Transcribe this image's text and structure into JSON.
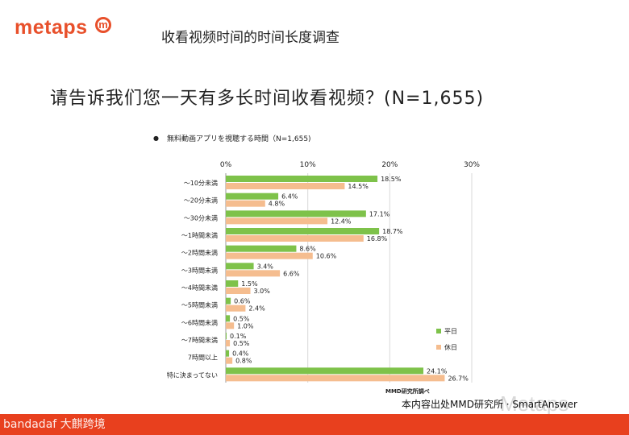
{
  "header": {
    "logo_text": "metaps",
    "logo_mark": "m",
    "slide_title": "收看视频时间的时间长度调查"
  },
  "question": "请告诉我们您一天有多长时间收看视频？(N=1,655)",
  "chart_data": {
    "type": "bar",
    "orientation": "horizontal",
    "title": "無料動画アプリを視聴する時間（N=1,655)",
    "title_bullet": "●",
    "categories": [
      "～10分未満",
      "～20分未満",
      "～30分未満",
      "～1時間未満",
      "～2時間未満",
      "～3時間未満",
      "～4時間未満",
      "～5時間未満",
      "～6時間未満",
      "～7時間未満",
      "7時間以上",
      "特に決まってない"
    ],
    "series": [
      {
        "name": "平日",
        "color": "#7ec24a",
        "values": [
          18.5,
          6.4,
          17.1,
          18.7,
          8.6,
          3.4,
          1.5,
          0.6,
          0.5,
          0.1,
          0.4,
          24.1
        ]
      },
      {
        "name": "休日",
        "color": "#f5bd8f",
        "values": [
          14.5,
          4.8,
          12.4,
          16.8,
          10.6,
          6.6,
          3.0,
          2.4,
          1.0,
          0.5,
          0.8,
          26.7
        ]
      }
    ],
    "value_suffix": "%",
    "xlim": [
      0,
      30
    ],
    "xticks": [
      0,
      10,
      20,
      30
    ],
    "xtick_labels": [
      "0%",
      "10%",
      "20%",
      "30%"
    ],
    "grid": true,
    "legend_position": "bottom-right",
    "source": "MMD研究所調べ"
  },
  "footer": {
    "source_note": "本内容出处MMD研究所 · SmartAnswer",
    "watermark": "Metaps",
    "left_text": "bandadaf 大麒跨境"
  }
}
